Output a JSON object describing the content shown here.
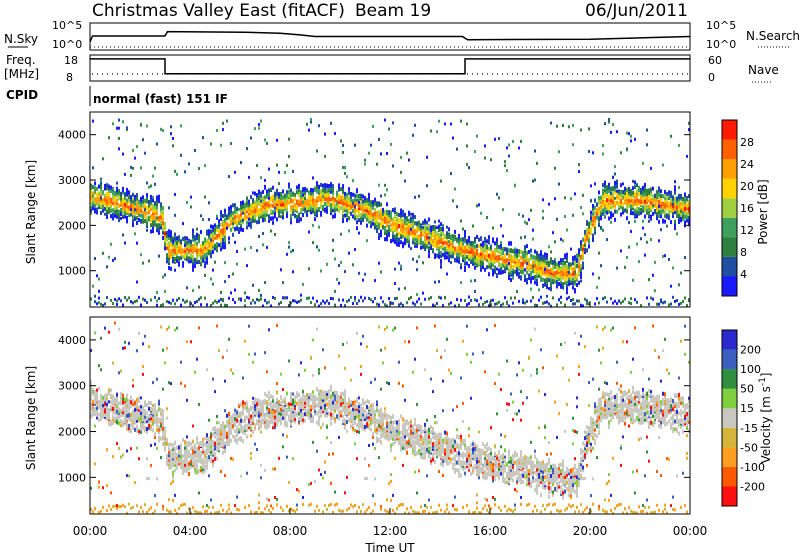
{
  "header": {
    "title": "Christmas Valley East (fitACF)",
    "beam": "Beam 19",
    "date": "06/Jun/2011"
  },
  "strip_labels": {
    "nsky": "N.Sky",
    "nsky_hi": "10^5",
    "nsky_lo": "10^0",
    "nsearch": "N.Search",
    "nsearch_hi": "10^5",
    "nsearch_lo": "10^0",
    "freq": "Freq.",
    "freq_unit": "[MHz]",
    "freq_hi": "18",
    "freq_lo": "8",
    "nave": "Nave",
    "nave_hi": "60",
    "nave_lo": "0",
    "cpid": "CPID",
    "mode": "normal (fast) 151 IF"
  },
  "colors": {
    "power_scale": [
      "#1a1aff",
      "#1f4fa0",
      "#2f7f3f",
      "#3f9f5f",
      "#9fcf3f",
      "#ffd200",
      "#ff9f00",
      "#ff6000",
      "#ff1a00"
    ],
    "velocity_scale": [
      "#2a2acf",
      "#3a5fbf",
      "#2f8f3f",
      "#7fcf3f",
      "#c8c8c0",
      "#d4b43a",
      "#ff9f1f",
      "#ff5a00",
      "#ff1010"
    ],
    "nsky_line": "#000000",
    "background": "#ffffff"
  },
  "chart_data": [
    {
      "type": "line",
      "id": "nsky",
      "x_unit": "hours UT",
      "x": [
        0.0,
        0.1,
        3.0,
        3.1,
        6.2,
        7.6,
        8.4,
        9.0,
        14.9,
        15.1,
        20.0,
        24.0
      ],
      "values_log10": [
        1.5,
        2.6,
        2.6,
        3.4,
        3.3,
        3.1,
        2.8,
        2.5,
        2.5,
        1.9,
        2.0,
        2.5
      ],
      "ylabel": "N.Sky",
      "ytick_labels": [
        "10^0",
        "10^5"
      ],
      "ylim_log10": [
        0,
        5
      ]
    },
    {
      "type": "line",
      "id": "freq",
      "x_unit": "hours UT",
      "x": [
        0.0,
        3.0,
        3.0,
        15.0,
        15.0,
        24.0
      ],
      "values": [
        16.5,
        16.5,
        10.8,
        10.8,
        16.5,
        16.5
      ],
      "ylabel": "Freq. [MHz]",
      "ytick_labels": [
        "8",
        "18"
      ],
      "ylim": [
        8,
        18
      ]
    },
    {
      "type": "heatmap",
      "id": "power",
      "xlabel": "",
      "ylabel": "Slant Range [km]",
      "xlim": [
        0,
        24
      ],
      "ylim": [
        200,
        4500
      ],
      "yticks": [
        1000,
        2000,
        3000,
        4000
      ],
      "colorbar_label": "Power [dB]",
      "colorbar_ticks": [
        4,
        8,
        12,
        16,
        20,
        24,
        28
      ],
      "colorbar_range": [
        0,
        30
      ],
      "band_center_km": [
        2700,
        2550,
        2400,
        2250,
        1500,
        1500,
        2200,
        2500,
        2550,
        2650,
        2400,
        2100,
        1900,
        1500,
        1300,
        1200,
        1000,
        1000,
        1700,
        2600,
        2600,
        2400
      ],
      "band_center_hours": [
        0,
        1,
        2,
        2.9,
        3.1,
        4.5,
        5.8,
        7,
        8.5,
        9.5,
        11,
        12,
        13,
        15,
        16.5,
        17.5,
        18.5,
        19.5,
        19.8,
        20.5,
        22,
        24
      ]
    },
    {
      "type": "heatmap",
      "id": "velocity",
      "xlabel": "Time UT",
      "ylabel": "Slant Range [km]",
      "xlim": [
        0,
        24
      ],
      "ylim": [
        200,
        4500
      ],
      "yticks": [
        1000,
        2000,
        3000,
        4000
      ],
      "xtick_labels": [
        "00:00",
        "04:00",
        "08:00",
        "12:00",
        "16:00",
        "20:00",
        "00:00"
      ],
      "colorbar_label": "Velocity [m s^-1]",
      "colorbar_ticks": [
        200,
        100,
        50,
        15,
        -15,
        -50,
        -100,
        -200
      ]
    }
  ]
}
